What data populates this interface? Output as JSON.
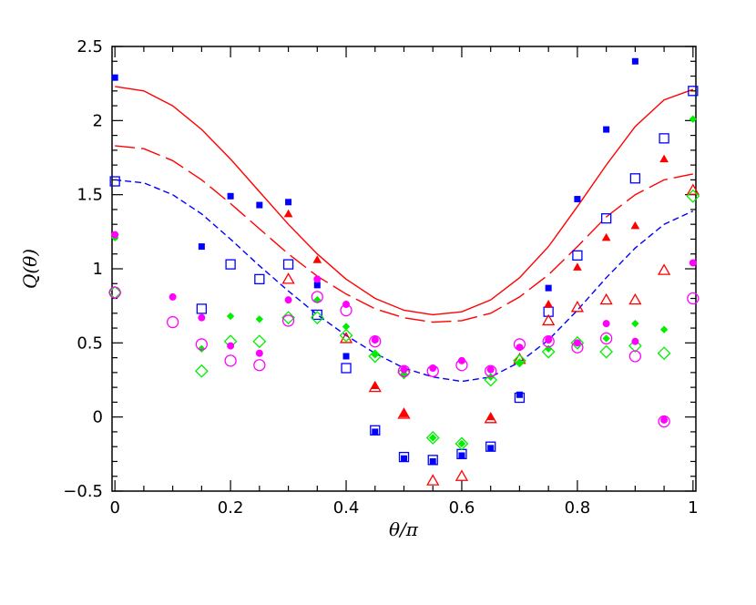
{
  "chart_data": {
    "type": "scatter",
    "xlabel": "θ/π",
    "ylabel": "Q(θ)",
    "xlim": [
      -0.005,
      1.005
    ],
    "ylim": [
      -0.5,
      2.5
    ],
    "xticks": [
      0,
      0.2,
      0.4,
      0.6,
      0.8,
      1
    ],
    "xtick_labels": [
      "0",
      "0.2",
      "0.4",
      "0.6",
      "0.8",
      "1"
    ],
    "yticks": [
      -0.5,
      0,
      0.5,
      1,
      1.5,
      2,
      2.5
    ],
    "ytick_labels": [
      "−0.5",
      "0",
      "0.5",
      "1",
      "1.5",
      "2",
      "2.5"
    ],
    "grid": false,
    "curves": [
      {
        "style": "solid",
        "color": "#ff0000",
        "x": [
          0,
          0.05,
          0.1,
          0.15,
          0.2,
          0.25,
          0.3,
          0.35,
          0.4,
          0.45,
          0.5,
          0.55,
          0.6,
          0.65,
          0.7,
          0.75,
          0.8,
          0.85,
          0.9,
          0.95,
          1
        ],
        "y": [
          2.23,
          2.2,
          2.1,
          1.94,
          1.74,
          1.52,
          1.3,
          1.1,
          0.93,
          0.8,
          0.72,
          0.69,
          0.71,
          0.79,
          0.94,
          1.15,
          1.42,
          1.7,
          1.96,
          2.14,
          2.21
        ]
      },
      {
        "style": "longdash",
        "color": "#ff0000",
        "x": [
          0,
          0.05,
          0.1,
          0.15,
          0.2,
          0.25,
          0.3,
          0.35,
          0.4,
          0.45,
          0.5,
          0.55,
          0.6,
          0.65,
          0.7,
          0.75,
          0.8,
          0.85,
          0.9,
          0.95,
          1
        ],
        "y": [
          1.83,
          1.81,
          1.73,
          1.6,
          1.44,
          1.27,
          1.1,
          0.95,
          0.83,
          0.73,
          0.67,
          0.64,
          0.65,
          0.7,
          0.81,
          0.96,
          1.15,
          1.35,
          1.5,
          1.6,
          1.64
        ]
      },
      {
        "style": "shortdash",
        "color": "#0000ff",
        "x": [
          0,
          0.05,
          0.1,
          0.15,
          0.2,
          0.25,
          0.3,
          0.35,
          0.4,
          0.45,
          0.5,
          0.55,
          0.6,
          0.65,
          0.7,
          0.75,
          0.8,
          0.85,
          0.9,
          0.95,
          1
        ],
        "y": [
          1.6,
          1.58,
          1.5,
          1.37,
          1.2,
          1.02,
          0.85,
          0.69,
          0.55,
          0.43,
          0.33,
          0.27,
          0.24,
          0.27,
          0.37,
          0.52,
          0.72,
          0.94,
          1.14,
          1.3,
          1.39
        ]
      }
    ],
    "series": [
      {
        "marker": "square",
        "fill": "filled",
        "color": "#0000ff",
        "size": 6,
        "x": [
          0,
          0.15,
          0.2,
          0.25,
          0.3,
          0.35,
          0.4,
          0.45,
          0.5,
          0.55,
          0.6,
          0.65,
          0.7,
          0.75,
          0.8,
          0.85,
          0.9
        ],
        "y": [
          2.29,
          1.15,
          1.49,
          1.43,
          1.45,
          0.89,
          0.41,
          -0.1,
          -0.28,
          -0.3,
          -0.26,
          -0.21,
          0.15,
          0.87,
          1.47,
          1.94,
          2.4
        ]
      },
      {
        "marker": "square",
        "fill": "open",
        "color": "#0000ff",
        "size": 10,
        "x": [
          0,
          0.15,
          0.2,
          0.25,
          0.3,
          0.35,
          0.4,
          0.45,
          0.5,
          0.55,
          0.6,
          0.65,
          0.7,
          0.75,
          0.8,
          0.85,
          0.9,
          0.95,
          1
        ],
        "y": [
          1.59,
          0.73,
          1.03,
          0.93,
          1.03,
          0.69,
          0.33,
          -0.09,
          -0.27,
          -0.29,
          -0.25,
          -0.2,
          0.13,
          0.71,
          1.09,
          1.34,
          1.61,
          1.88,
          2.2
        ]
      },
      {
        "marker": "triangle",
        "fill": "filled",
        "color": "#ff0000",
        "size": 8,
        "x": [
          0.3,
          0.35,
          0.45,
          0.5,
          0.65,
          0.75,
          0.8,
          0.85,
          0.9,
          0.95
        ],
        "y": [
          1.37,
          1.06,
          0.21,
          0.02,
          0.0,
          0.76,
          1.01,
          1.21,
          1.29,
          1.74
        ]
      },
      {
        "marker": "triangle",
        "fill": "open",
        "color": "#ff0000",
        "size": 12,
        "x": [
          0.3,
          0.4,
          0.45,
          0.5,
          0.55,
          0.6,
          0.65,
          0.7,
          0.75,
          0.8,
          0.85,
          0.9,
          0.95,
          1
        ],
        "y": [
          0.93,
          0.53,
          0.2,
          0.02,
          -0.43,
          -0.4,
          -0.01,
          0.39,
          0.65,
          0.74,
          0.79,
          0.79,
          0.99,
          1.53
        ]
      },
      {
        "marker": "diamond",
        "fill": "filled",
        "color": "#00ee00",
        "size": 7,
        "x": [
          0,
          0.15,
          0.2,
          0.25,
          0.35,
          0.4,
          0.45,
          0.5,
          0.55,
          0.6,
          0.65,
          0.7,
          0.75,
          0.8,
          0.85,
          0.9,
          0.95,
          1
        ],
        "y": [
          1.21,
          0.46,
          0.68,
          0.66,
          0.79,
          0.61,
          0.42,
          0.29,
          -0.14,
          -0.18,
          0.27,
          0.37,
          0.46,
          0.5,
          0.53,
          0.63,
          0.59,
          2.01
        ]
      },
      {
        "marker": "diamond",
        "fill": "open",
        "color": "#00ee00",
        "size": 13,
        "x": [
          0,
          0.15,
          0.2,
          0.25,
          0.3,
          0.35,
          0.4,
          0.45,
          0.5,
          0.55,
          0.6,
          0.65,
          0.7,
          0.75,
          0.8,
          0.85,
          0.9,
          0.95,
          1
        ],
        "y": [
          0.84,
          0.31,
          0.51,
          0.51,
          0.67,
          0.67,
          0.55,
          0.41,
          0.3,
          -0.14,
          -0.18,
          0.25,
          0.38,
          0.44,
          0.5,
          0.44,
          0.48,
          0.43,
          1.49
        ]
      },
      {
        "marker": "circle",
        "fill": "filled",
        "color": "#ff00ff",
        "size": 7,
        "x": [
          0,
          0.1,
          0.15,
          0.2,
          0.25,
          0.3,
          0.35,
          0.4,
          0.45,
          0.5,
          0.55,
          0.6,
          0.65,
          0.7,
          0.75,
          0.8,
          0.85,
          0.9,
          0.95,
          1
        ],
        "y": [
          1.23,
          0.81,
          0.67,
          0.48,
          0.43,
          0.79,
          0.93,
          0.76,
          0.52,
          0.32,
          0.33,
          0.38,
          0.32,
          0.47,
          0.52,
          0.5,
          0.63,
          0.51,
          -0.02,
          1.04
        ]
      },
      {
        "marker": "circle",
        "fill": "open",
        "color": "#ff00ff",
        "size": 12,
        "x": [
          0,
          0.1,
          0.15,
          0.2,
          0.25,
          0.3,
          0.35,
          0.4,
          0.45,
          0.5,
          0.55,
          0.6,
          0.65,
          0.7,
          0.75,
          0.8,
          0.85,
          0.9,
          0.95,
          1
        ],
        "y": [
          0.84,
          0.64,
          0.49,
          0.38,
          0.35,
          0.65,
          0.81,
          0.72,
          0.51,
          0.31,
          0.31,
          0.35,
          0.31,
          0.49,
          0.51,
          0.47,
          0.53,
          0.41,
          -0.03,
          0.8
        ]
      }
    ]
  }
}
